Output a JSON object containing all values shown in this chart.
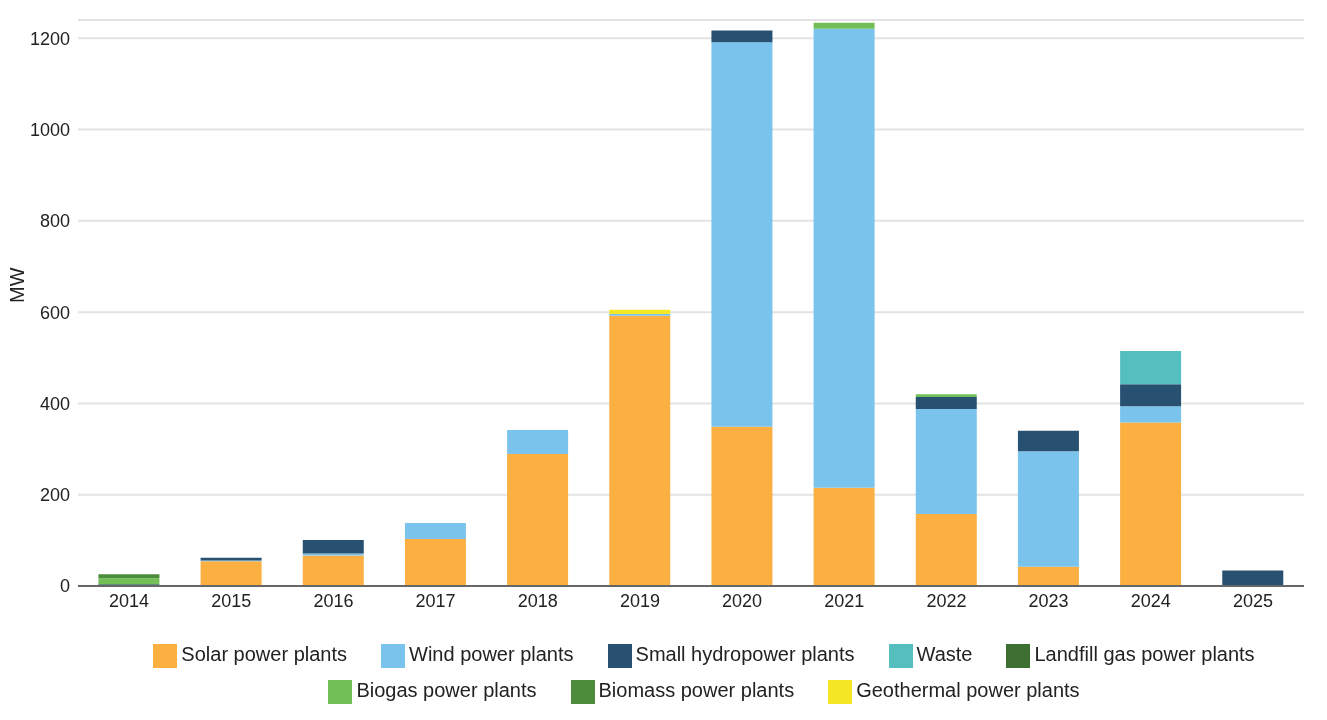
{
  "chart_data": {
    "type": "bar",
    "stacked": true,
    "ylabel": "MW",
    "categories": [
      "2014",
      "2015",
      "2016",
      "2017",
      "2018",
      "2019",
      "2020",
      "2021",
      "2022",
      "2023",
      "2024",
      "2025"
    ],
    "ylim": [
      0,
      1240
    ],
    "yticks": [
      0,
      200,
      400,
      600,
      800,
      1000,
      1200
    ],
    "grid": "y",
    "legend": "bottom",
    "series": [
      {
        "name": "Solar power plants",
        "color": "#fbb041",
        "values": [
          0,
          54,
          67,
          103,
          289,
          592,
          349,
          215,
          158,
          42,
          358,
          0
        ]
      },
      {
        "name": "Wind power plants",
        "color": "#7ac3ec",
        "values": [
          0,
          2,
          4,
          35,
          53,
          4,
          842,
          1006,
          230,
          253,
          36,
          0
        ]
      },
      {
        "name": "Small hydropower plants",
        "color": "#285171",
        "values": [
          4,
          6,
          30,
          0,
          0,
          0,
          26,
          0,
          26,
          45,
          48,
          34
        ]
      },
      {
        "name": "Waste",
        "color": "#55bfbf",
        "values": [
          0,
          0,
          0,
          0,
          0,
          0,
          0,
          0,
          0,
          0,
          73,
          0
        ]
      },
      {
        "name": "Landfill gas power plants",
        "color": "#3d6e32",
        "values": [
          0,
          0,
          0,
          0,
          0,
          0,
          0,
          0,
          0,
          0,
          0,
          0
        ]
      },
      {
        "name": "Biogas power plants",
        "color": "#72bf58",
        "values": [
          13,
          0,
          0,
          0,
          0,
          0,
          0,
          13,
          6,
          0,
          0,
          0
        ]
      },
      {
        "name": "Biomass power plants",
        "color": "#4c8c3a",
        "values": [
          9,
          0,
          0,
          0,
          0,
          0,
          0,
          0,
          0,
          0,
          0,
          0
        ]
      },
      {
        "name": "Geothermal power plants",
        "color": "#f5e625",
        "values": [
          0,
          0,
          0,
          0,
          0,
          9,
          0,
          0,
          0,
          0,
          0,
          0
        ]
      }
    ]
  }
}
